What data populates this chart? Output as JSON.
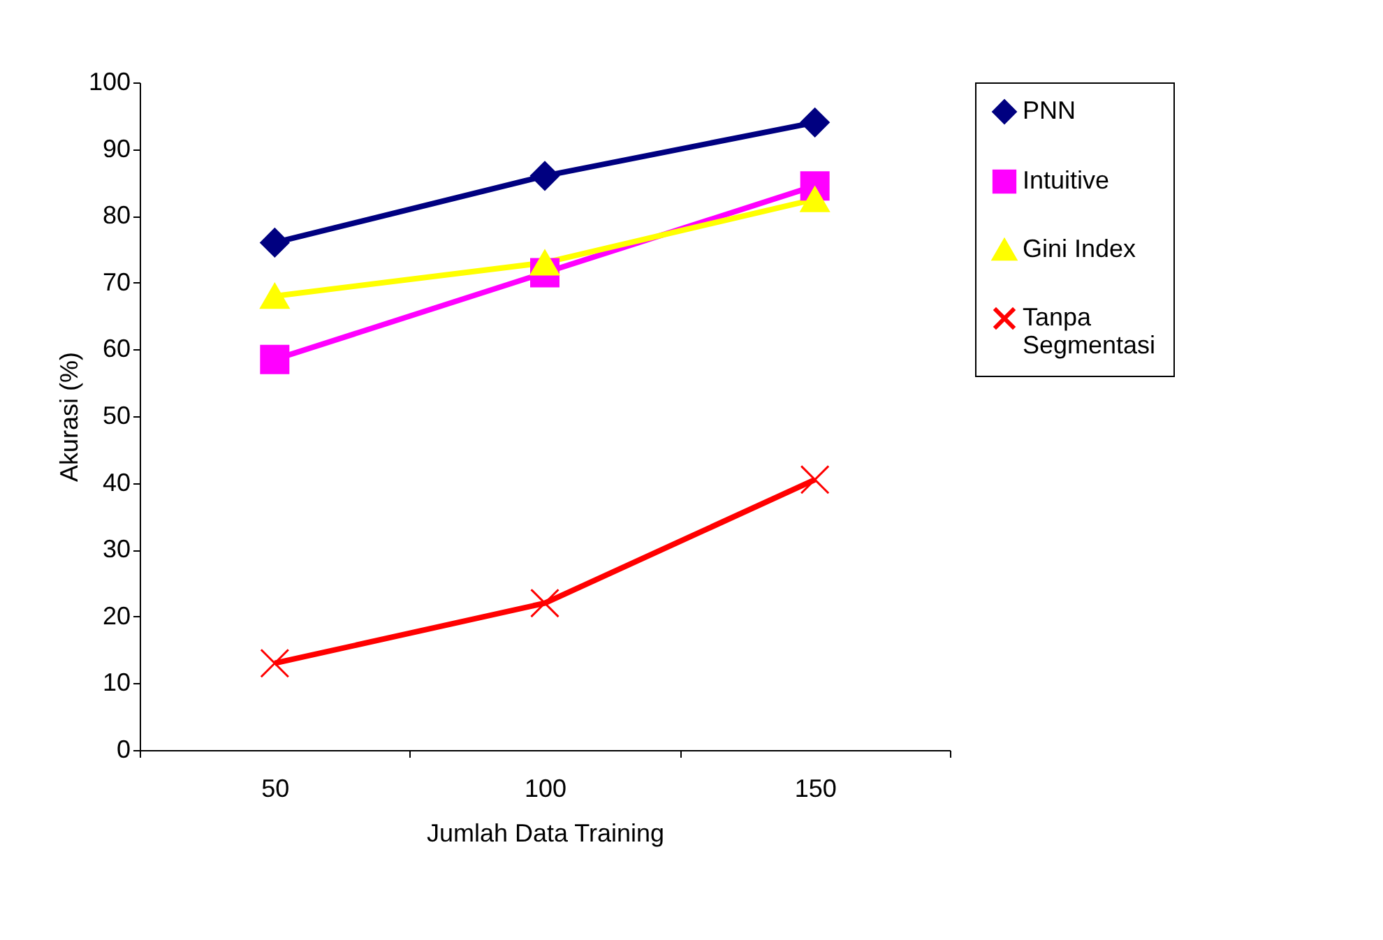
{
  "chart_data": {
    "type": "line",
    "xlabel": "Jumlah Data Training",
    "ylabel": "Akurasi (%)",
    "categories": [
      "50",
      "100",
      "150"
    ],
    "series": [
      {
        "name": "PNN",
        "color": "#000080",
        "marker": "diamond",
        "values": [
          76,
          86,
          94
        ]
      },
      {
        "name": "Intuitive",
        "color": "#ff00ff",
        "marker": "square",
        "values": [
          58.5,
          71.5,
          84.5
        ]
      },
      {
        "name": "Gini Index",
        "color": "#ffff00",
        "marker": "triangle",
        "values": [
          68,
          73,
          82.5
        ]
      },
      {
        "name": "Tanpa Segmentasi",
        "color": "#ff0000",
        "marker": "cross",
        "values": [
          13,
          22,
          40.5
        ]
      }
    ],
    "ylim": [
      0,
      100
    ],
    "yticks": [
      0,
      10,
      20,
      30,
      40,
      50,
      60,
      70,
      80,
      90,
      100
    ],
    "grid": false,
    "legend": "right",
    "line_style": "solid"
  }
}
